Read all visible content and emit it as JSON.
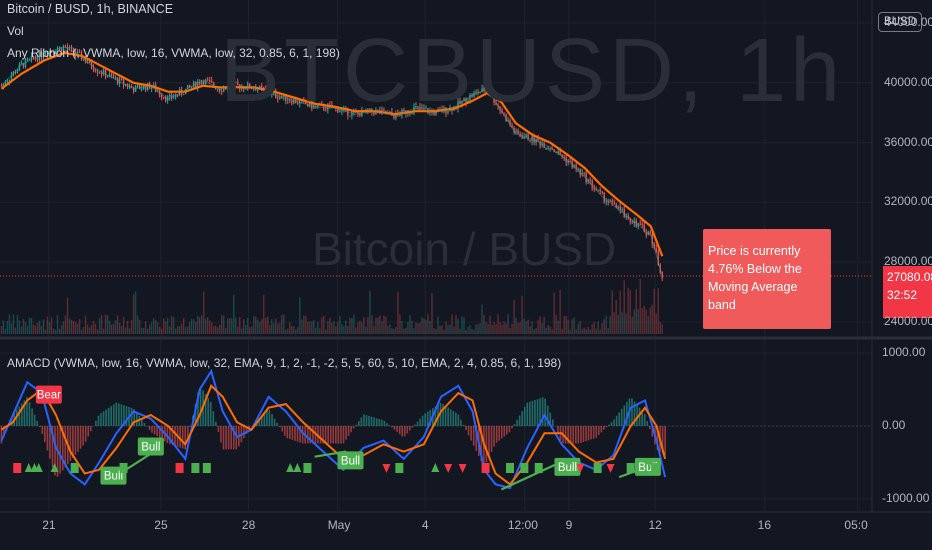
{
  "header": {
    "title": "Bitcoin / BUSD, 1h, BINANCE",
    "vol_label": "Vol",
    "ribbon_label": "Any Ribbon (, VWMA, low, 16, VWMA, low, 32, 0.85, 6, 1, 198)",
    "amacd_label": "AMACD (VWMA, low, 16, VWMA, low, 32, EMA, 9, 1, 2, -1, -2, 5, 5, 60, 5, 10, EMA, 2, 4, 0.85, 6, 1, 198)"
  },
  "watermark": {
    "symbol": "BTCBUSD, 1h",
    "name": "Bitcoin / BUSD"
  },
  "currency_badge": "BUSD",
  "current_price": {
    "price": "27080.08",
    "countdown": "32:52"
  },
  "callout": {
    "line1": "Price is currently",
    "line2": "4.76% Below the",
    "line3": "Moving Average band"
  },
  "colors": {
    "background": "#131722",
    "up": "#26a69a",
    "down": "#ef5350",
    "ribbon_fast": "#ff7a1a",
    "ribbon_slow": "#ff6d00",
    "macd": "#2962ff",
    "signal": "#ff6d00",
    "bull": "#4caf50",
    "bear": "#f23645"
  },
  "chart_data": [
    {
      "type": "line",
      "title": "Bitcoin / BUSD, 1h, BINANCE",
      "ylim": [
        23200,
        45000
      ],
      "y_ticks": [
        "24000.00",
        "28000.00",
        "32000.00",
        "36000.00",
        "40000.00",
        "44000.00"
      ],
      "y_tick_values": [
        24000,
        28000,
        32000,
        36000,
        40000,
        44000
      ],
      "x_ticks": [
        "21",
        "25",
        "28",
        "May",
        "4",
        "12:00",
        "9",
        "12",
        "16",
        "05:0"
      ],
      "x_tick_days": [
        20.95,
        24.85,
        27.9,
        31,
        34.05,
        37.5,
        39.05,
        42.05,
        45.85,
        49.1
      ],
      "x_range_days": [
        19.25,
        49.6
      ],
      "series": [
        {
          "name": "",
          "role": "price",
          "x": [
            19.3,
            20.0,
            20.8,
            21.5,
            22.1,
            22.6,
            23.2,
            23.9,
            24.5,
            25.1,
            25.7,
            26.3,
            26.9,
            27.5,
            28.1,
            28.8,
            29.5,
            30.2,
            30.9,
            31.6,
            32.3,
            33.0,
            33.7,
            34.4,
            35.1,
            35.7,
            36.2,
            36.7,
            37.2,
            37.8,
            38.4,
            39.0,
            39.6,
            40.2,
            40.8,
            41.4,
            41.9,
            42.3
          ],
          "values": [
            39800,
            41200,
            42000,
            42400,
            41700,
            40900,
            40300,
            39600,
            39800,
            38900,
            39500,
            40200,
            39600,
            39800,
            39700,
            39200,
            38800,
            38400,
            38300,
            37900,
            38100,
            37800,
            38300,
            38000,
            38400,
            39200,
            39600,
            38100,
            36600,
            36200,
            35700,
            34800,
            33700,
            32400,
            31500,
            30600,
            29800,
            27080
          ]
        },
        {
          "name": "",
          "role": "moving-average",
          "x": [
            19.3,
            20.0,
            20.8,
            21.5,
            22.1,
            22.6,
            23.2,
            23.9,
            24.5,
            25.1,
            25.7,
            26.3,
            26.9,
            27.5,
            28.1,
            28.8,
            29.5,
            30.2,
            30.9,
            31.6,
            32.3,
            33.0,
            33.7,
            34.4,
            35.1,
            35.7,
            36.2,
            36.7,
            37.2,
            37.8,
            38.4,
            39.0,
            39.6,
            40.2,
            40.8,
            41.4,
            41.9,
            42.3
          ],
          "values": [
            39600,
            40600,
            41500,
            42000,
            41800,
            41300,
            40700,
            40000,
            39800,
            39400,
            39400,
            39800,
            39700,
            39700,
            39700,
            39400,
            39000,
            38600,
            38400,
            38100,
            38100,
            37900,
            38100,
            38100,
            38300,
            38800,
            39300,
            38700,
            37300,
            36500,
            36000,
            35200,
            34300,
            33100,
            32100,
            31200,
            30400,
            28400
          ]
        }
      ]
    },
    {
      "type": "line",
      "title": "AMACD (VWMA, low, 16, VWMA, low, 32, EMA, 9, 1, 2, -1, -2, 5, 5, 60, 5, 10, EMA, 2, 4, 0.85, 6, 1, 198)",
      "ylim": [
        -1150,
        1150
      ],
      "y_ticks": [
        "1000.00",
        "0.00",
        "-1000.00"
      ],
      "y_tick_values": [
        1000,
        0,
        -1000
      ],
      "series": [
        {
          "name": "",
          "role": "macd",
          "x": [
            19.3,
            19.7,
            20.2,
            20.7,
            21.2,
            21.7,
            22.2,
            22.7,
            23.3,
            23.9,
            24.5,
            25.1,
            25.7,
            26.2,
            26.6,
            27.0,
            27.5,
            28.0,
            28.6,
            29.2,
            29.8,
            30.5,
            31.2,
            31.9,
            32.6,
            33.3,
            34.0,
            34.6,
            35.2,
            35.7,
            36.1,
            36.5,
            37.0,
            37.6,
            38.2,
            38.8,
            39.4,
            40.0,
            40.6,
            41.2,
            41.7,
            42.1,
            42.4
          ],
          "values": [
            -200,
            150,
            600,
            450,
            -300,
            -650,
            -800,
            -500,
            -100,
            200,
            100,
            -150,
            -450,
            500,
            750,
            200,
            -150,
            -50,
            400,
            200,
            -100,
            -350,
            -600,
            -300,
            -200,
            -450,
            -150,
            400,
            550,
            200,
            -600,
            -800,
            -850,
            -300,
            150,
            -250,
            -500,
            -600,
            -400,
            250,
            350,
            -200,
            -700
          ]
        },
        {
          "name": "",
          "role": "signal",
          "x": [
            19.3,
            19.7,
            20.2,
            20.7,
            21.2,
            21.7,
            22.2,
            22.7,
            23.3,
            23.9,
            24.5,
            25.1,
            25.7,
            26.2,
            26.6,
            27.0,
            27.5,
            28.0,
            28.6,
            29.2,
            29.8,
            30.5,
            31.2,
            31.9,
            32.6,
            33.3,
            34.0,
            34.6,
            35.2,
            35.7,
            36.1,
            36.5,
            37.0,
            37.6,
            38.2,
            38.8,
            39.4,
            40.0,
            40.6,
            41.2,
            41.7,
            42.1,
            42.4
          ],
          "values": [
            -50,
            50,
            350,
            500,
            150,
            -350,
            -650,
            -600,
            -300,
            50,
            150,
            0,
            -250,
            150,
            550,
            400,
            50,
            -50,
            250,
            300,
            50,
            -200,
            -450,
            -400,
            -250,
            -350,
            -250,
            200,
            450,
            350,
            -250,
            -650,
            -800,
            -500,
            -100,
            -100,
            -350,
            -500,
            -450,
            0,
            250,
            0,
            -450
          ]
        }
      ],
      "annotations": [
        {
          "kind": "label",
          "text": "Bear",
          "x": 20.95,
          "y": 430,
          "color": "#f23645"
        },
        {
          "kind": "label",
          "text": "Bull",
          "x": 23.2,
          "y": -680,
          "color": "#4caf50"
        },
        {
          "kind": "label",
          "text": "Bull",
          "x": 24.5,
          "y": -280,
          "color": "#4caf50"
        },
        {
          "kind": "label",
          "text": "Bull",
          "x": 31.45,
          "y": -470,
          "color": "#4caf50"
        },
        {
          "kind": "label",
          "text": "Bull",
          "x": 39.0,
          "y": -560,
          "color": "#4caf50"
        },
        {
          "kind": "label",
          "text": "Bull",
          "x": 41.8,
          "y": -560,
          "color": "#4caf50"
        },
        {
          "kind": "divergence-line",
          "x1": 22.9,
          "y1": -780,
          "x2": 24.5,
          "y2": -380,
          "color": "#4caf50"
        },
        {
          "kind": "divergence-line",
          "x1": 30.2,
          "y1": -420,
          "x2": 31.3,
          "y2": -350,
          "color": "#4caf50"
        },
        {
          "kind": "divergence-line",
          "x1": 36.7,
          "y1": -870,
          "x2": 38.9,
          "y2": -470,
          "color": "#4caf50"
        },
        {
          "kind": "divergence-line",
          "x1": 40.8,
          "y1": -700,
          "x2": 41.7,
          "y2": -570,
          "color": "#4caf50"
        }
      ],
      "markers": [
        {
          "shape": "square",
          "color": "#f23645",
          "x": 19.85
        },
        {
          "shape": "triangle-up",
          "color": "#4caf50",
          "x": 20.25
        },
        {
          "shape": "triangle-up",
          "color": "#4caf50",
          "x": 20.45
        },
        {
          "shape": "triangle-up",
          "color": "#4caf50",
          "x": 20.6
        },
        {
          "shape": "triangle-up",
          "color": "#4caf50",
          "x": 21.15
        },
        {
          "shape": "square",
          "color": "#4caf50",
          "x": 21.85
        },
        {
          "shape": "square",
          "color": "#4caf50",
          "x": 23.55
        },
        {
          "shape": "square",
          "color": "#f23645",
          "x": 25.5
        },
        {
          "shape": "square",
          "color": "#4caf50",
          "x": 26.05
        },
        {
          "shape": "square",
          "color": "#4caf50",
          "x": 26.45
        },
        {
          "shape": "triangle-up",
          "color": "#4caf50",
          "x": 29.35
        },
        {
          "shape": "triangle-up",
          "color": "#4caf50",
          "x": 29.6
        },
        {
          "shape": "square",
          "color": "#4caf50",
          "x": 29.95
        },
        {
          "shape": "triangle-down",
          "color": "#f23645",
          "x": 32.7
        },
        {
          "shape": "square",
          "color": "#4caf50",
          "x": 33.15
        },
        {
          "shape": "triangle-up",
          "color": "#4caf50",
          "x": 34.4
        },
        {
          "shape": "triangle-down",
          "color": "#f23645",
          "x": 34.85
        },
        {
          "shape": "triangle-down",
          "color": "#f23645",
          "x": 35.35
        },
        {
          "shape": "square",
          "color": "#f23645",
          "x": 36.15
        },
        {
          "shape": "square",
          "color": "#4caf50",
          "x": 37.0
        },
        {
          "shape": "square",
          "color": "#4caf50",
          "x": 37.5
        },
        {
          "shape": "square",
          "color": "#4caf50",
          "x": 38.0
        },
        {
          "shape": "triangle-down",
          "color": "#f23645",
          "x": 39.45
        },
        {
          "shape": "square",
          "color": "#4caf50",
          "x": 40.05
        },
        {
          "shape": "triangle-down",
          "color": "#f23645",
          "x": 40.5
        },
        {
          "shape": "square",
          "color": "#4caf50",
          "x": 41.2
        },
        {
          "shape": "square",
          "color": "#4caf50",
          "x": 42.05
        }
      ]
    }
  ]
}
